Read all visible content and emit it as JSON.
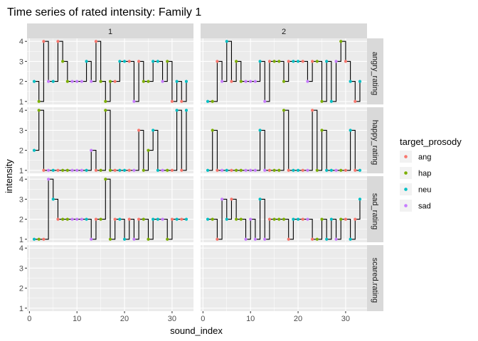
{
  "chart_data": {
    "type": "line",
    "subtype": "step-with-points",
    "title": "Time series of rated intensity: Family 1",
    "xlabel": "sound_index",
    "ylabel": "intensity",
    "x_ticks": [
      0,
      10,
      20,
      30
    ],
    "y_ticks": [
      1,
      2,
      3,
      4
    ],
    "xlim": [
      -0.5,
      34.5
    ],
    "ylim": [
      0.85,
      4.15
    ],
    "grid": true,
    "legend": {
      "title": "target_prosody",
      "position": "right",
      "entries": [
        {
          "name": "ang",
          "color": "#F8766D"
        },
        {
          "name": "hap",
          "color": "#7CAE00"
        },
        {
          "name": "neu",
          "color": "#00BFC4"
        },
        {
          "name": "sad",
          "color": "#C77CFF"
        }
      ]
    },
    "colors": {
      "ang": "#F8766D",
      "hap": "#7CAE00",
      "neu": "#00BFC4",
      "sad": "#C77CFF"
    },
    "columns": [
      "1",
      "2"
    ],
    "rows": [
      "angry_rating",
      "happy_rating",
      "sad_rating",
      "scared.rating"
    ],
    "categories": [
      "neu",
      "hap",
      "ang",
      "sad",
      "neu",
      "ang",
      "hap",
      "hap",
      "sad",
      "sad",
      "sad",
      "neu",
      "sad",
      "ang",
      "hap",
      "hap",
      "hap",
      "ang",
      "neu",
      "neu",
      "ang",
      "sad",
      "ang",
      "hap",
      "hap",
      "neu",
      "neu",
      "sad",
      "hap",
      "ang",
      "neu",
      "ang",
      "neu"
    ],
    "x": [
      1,
      2,
      3,
      4,
      5,
      6,
      7,
      8,
      9,
      10,
      11,
      12,
      13,
      14,
      15,
      16,
      17,
      18,
      19,
      20,
      21,
      22,
      23,
      24,
      25,
      26,
      27,
      28,
      29,
      30,
      31,
      32,
      33
    ],
    "panels": [
      {
        "row": "angry_rating",
        "col": "1",
        "values": [
          2,
          1,
          4,
          2,
          2,
          4,
          3,
          2,
          2,
          2,
          2,
          3,
          2,
          4,
          2,
          1,
          2,
          2,
          3,
          3,
          3,
          1,
          3,
          2,
          2,
          3,
          3,
          2,
          3,
          1,
          2,
          1,
          2
        ]
      },
      {
        "row": "angry_rating",
        "col": "2",
        "values": [
          1,
          1,
          3,
          2,
          4,
          2,
          3,
          2,
          2,
          2,
          2,
          3,
          1,
          3,
          3,
          3,
          2,
          3,
          3,
          3,
          3,
          2,
          3,
          3,
          1,
          3,
          1,
          3,
          4,
          3,
          2,
          1,
          2
        ]
      },
      {
        "row": "happy_rating",
        "col": "1",
        "values": [
          2,
          4,
          1,
          1,
          1,
          1,
          1,
          1,
          1,
          1,
          1,
          1,
          2,
          1,
          1,
          4,
          1,
          1,
          1,
          1,
          1,
          1,
          3,
          1,
          2,
          3,
          1,
          1,
          1,
          1,
          4,
          1,
          4
        ]
      },
      {
        "row": "happy_rating",
        "col": "2",
        "values": [
          1,
          3,
          1,
          1,
          1,
          1,
          1,
          1,
          1,
          1,
          1,
          3,
          1,
          1,
          1,
          1,
          4,
          1,
          1,
          1,
          1,
          1,
          4,
          1,
          3,
          1,
          1,
          1,
          1,
          1,
          3,
          1,
          1
        ]
      },
      {
        "row": "sad_rating",
        "col": "1",
        "values": [
          1,
          1,
          1,
          4,
          3,
          2,
          2,
          2,
          2,
          2,
          2,
          2,
          1,
          2,
          2,
          4,
          1,
          2,
          2,
          1,
          2,
          1,
          2,
          2,
          1,
          2,
          2,
          2,
          1,
          2,
          2,
          2,
          2
        ]
      },
      {
        "row": "sad_rating",
        "col": "2",
        "values": [
          2,
          2,
          1,
          3,
          2,
          3,
          2,
          2,
          1,
          2,
          1,
          3,
          1,
          2,
          2,
          2,
          2,
          1,
          2,
          2,
          2,
          2,
          1,
          1,
          2,
          1,
          2,
          1,
          2,
          2,
          1,
          2,
          3
        ]
      },
      {
        "row": "scared.rating",
        "col": "1",
        "values": []
      },
      {
        "row": "scared.rating",
        "col": "2",
        "values": []
      }
    ]
  }
}
